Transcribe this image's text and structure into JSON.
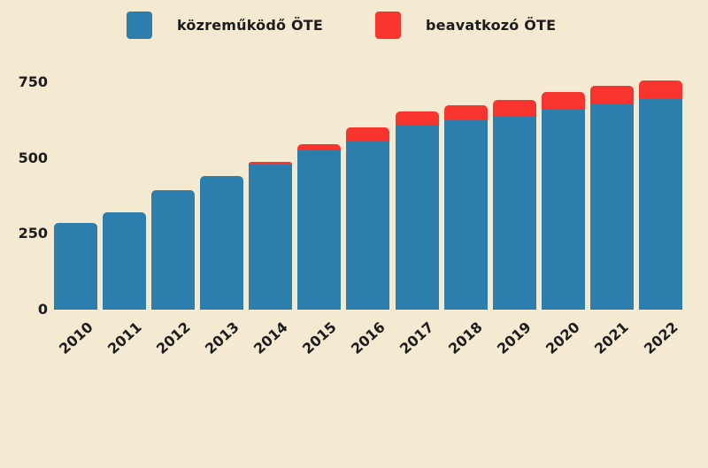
{
  "chart_data": {
    "type": "bar",
    "stacked": true,
    "title": "",
    "xlabel": "",
    "ylabel": "",
    "categories": [
      "2010",
      "2011",
      "2012",
      "2013",
      "2014",
      "2015",
      "2016",
      "2017",
      "2018",
      "2019",
      "2020",
      "2021",
      "2022"
    ],
    "series": [
      {
        "name": "közreműködő ÖTE",
        "color": "#2c7fac",
        "values": [
          285,
          320,
          395,
          440,
          478,
          525,
          559,
          607,
          625,
          637,
          662,
          680,
          697
        ]
      },
      {
        "name": "beavatkozó ÖTE",
        "color": "#f7342e",
        "values": [
          0,
          0,
          0,
          0,
          10,
          20,
          42,
          47,
          51,
          56,
          58,
          59,
          60
        ]
      }
    ],
    "totals": [
      285,
      320,
      395,
      440,
      488,
      545,
      601,
      654,
      676,
      693,
      720,
      739,
      757
    ],
    "yticks": [
      0,
      250,
      500,
      750
    ],
    "ylim": [
      0,
      780
    ],
    "grid": false,
    "legend_position": "top",
    "background": "#f4e9d1",
    "text_color": "#1c1c1c"
  }
}
